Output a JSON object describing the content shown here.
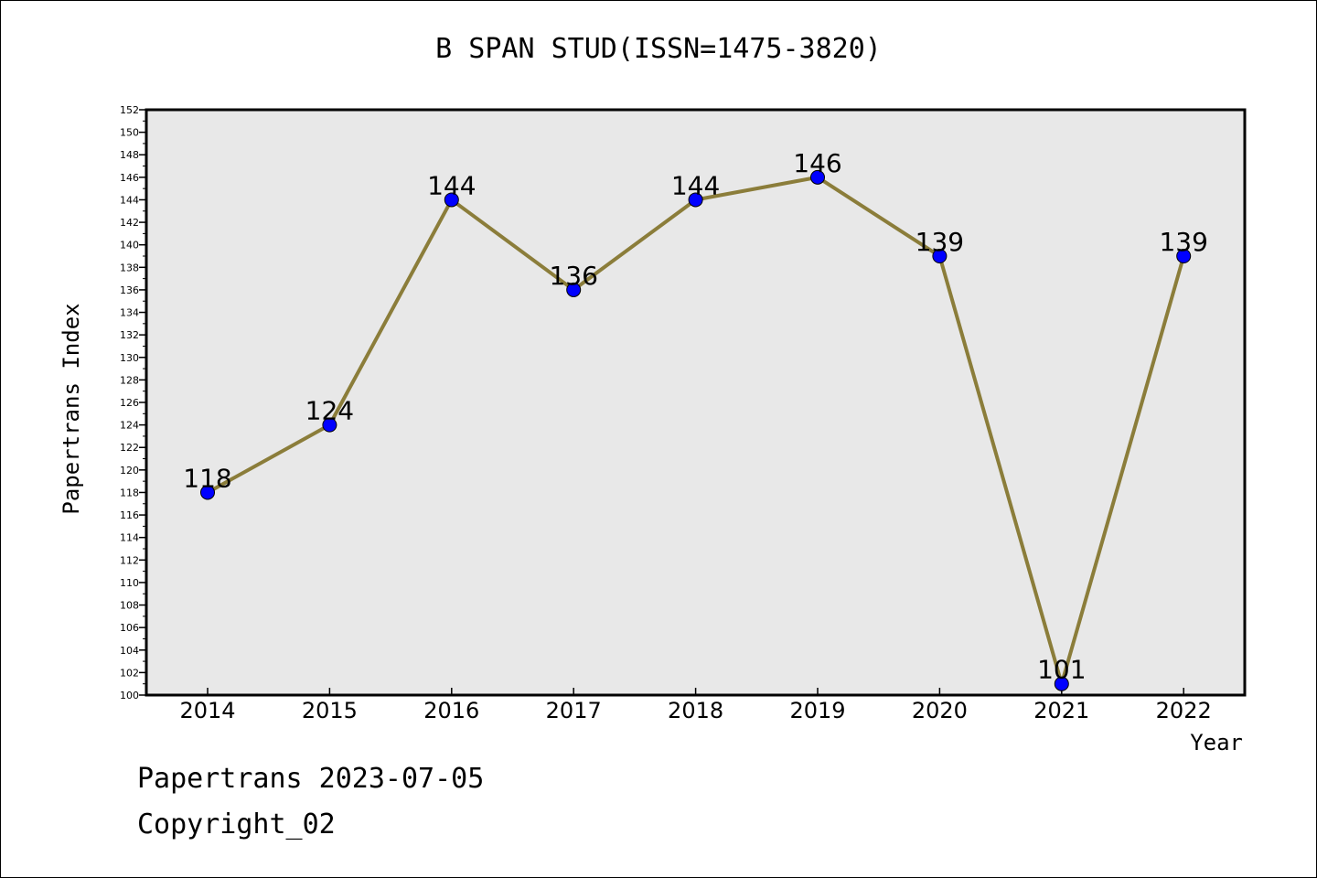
{
  "chart_data": {
    "type": "line",
    "title": "B SPAN STUD(ISSN=1475-3820)",
    "xlabel": "Year",
    "ylabel": "Papertrans Index",
    "categories": [
      "2014",
      "2015",
      "2016",
      "2017",
      "2018",
      "2019",
      "2020",
      "2021",
      "2022"
    ],
    "series": [
      {
        "values": [
          118,
          124,
          144,
          136,
          144,
          146,
          139,
          101,
          139
        ]
      }
    ],
    "ylim": [
      100,
      152
    ],
    "ytick_step": 2,
    "grid": false,
    "line_color": "#8b7d3a",
    "marker_color": "#0000ff",
    "plot_background": "#e8e8e8"
  },
  "footer": {
    "line1": "Papertrans 2023-07-05",
    "line2": "Copyright_02"
  }
}
